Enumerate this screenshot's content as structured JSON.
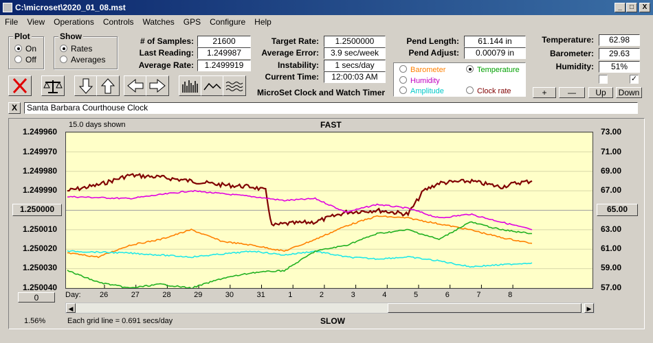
{
  "window": {
    "title": "C:\\microset\\2020_01_08.mst",
    "min": "_",
    "max": "□",
    "close": "X"
  },
  "menu": [
    "File",
    "View",
    "Operations",
    "Controls",
    "Watches",
    "GPS",
    "Configure",
    "Help"
  ],
  "plot_group": {
    "legend": "Plot",
    "options": [
      {
        "label": "On",
        "selected": true
      },
      {
        "label": "Off",
        "selected": false
      }
    ]
  },
  "show_group": {
    "legend": "Show",
    "options": [
      {
        "label": "Rates",
        "selected": true
      },
      {
        "label": "Averages",
        "selected": false
      }
    ]
  },
  "stats": {
    "samples_label": "# of Samples:",
    "samples": "21600",
    "last_label": "Last Reading:",
    "last": "1.249987",
    "avg_label": "Average Rate:",
    "avg": "1.2499919"
  },
  "targets": {
    "target_label": "Target Rate:",
    "target": "1.2500000",
    "error_label": "Average Error:",
    "error": "3.9 sec/week",
    "instab_label": "Instability:",
    "instab": "1 secs/day",
    "time_label": "Current Time:",
    "time": "12:00:03 AM",
    "app_name": "MicroSet Clock and Watch Timer"
  },
  "pend": {
    "length_label": "Pend Length:",
    "length": "61.144 in",
    "adjust_label": "Pend Adjust:",
    "adjust": "0.00079 in"
  },
  "env": {
    "temp_label": "Temperature:",
    "temp": "62.98",
    "baro_label": "Barometer:",
    "baro": "29.63",
    "hum_label": "Humidity:",
    "hum": "51%"
  },
  "series_select": [
    {
      "label": "Barometer",
      "color": "#ff8000",
      "selected": false
    },
    {
      "label": "Temperature",
      "color": "#00a000",
      "selected": true
    },
    {
      "label": "Humidity",
      "color": "#c000c0",
      "selected": false
    },
    {
      "label": "Clock rate",
      "color": "#800000",
      "selected": false
    },
    {
      "label": "Amplitude",
      "color": "#00c8c8",
      "selected": false
    }
  ],
  "adjust_buttons": {
    "plus": "+",
    "minus": "—",
    "up": "Up",
    "down": "Down"
  },
  "checkboxes": [
    false,
    true
  ],
  "clock_name": {
    "close": "X",
    "value": "Santa Barbara Courthouse Clock"
  },
  "graph": {
    "days_shown": "15.0 days shown",
    "top_label": "FAST",
    "bottom_label": "SLOW",
    "grid_note": "Each grid line = 0.691 secs/day",
    "zoom": "1.56%",
    "left_ticks": [
      "1.249960",
      "1.249970",
      "1.249980",
      "1.249990",
      "1.250000",
      "1.250010",
      "1.250020",
      "1.250030",
      "1.250040"
    ],
    "left_center_btn": "1.250000",
    "right_ticks": [
      "73.00",
      "71.00",
      "69.00",
      "67.00",
      "65.00",
      "63.00",
      "61.00",
      "59.00",
      "57.00"
    ],
    "right_center_btn": "65.00",
    "zero_btn": "0",
    "day_label": "Day:",
    "days": [
      "26",
      "27",
      "28",
      "29",
      "30",
      "31",
      "1",
      "2",
      "3",
      "4",
      "5",
      "6",
      "7",
      "8"
    ]
  },
  "chart_data": {
    "type": "line",
    "left_axis": {
      "range": [
        1.24996,
        1.25004
      ],
      "inverted": true
    },
    "right_axis": {
      "range": [
        57,
        73
      ]
    },
    "series": [
      {
        "name": "Clock rate",
        "color": "#800000",
        "points": [
          [
            0,
            1.24999
          ],
          [
            1,
            1.249987
          ],
          [
            2,
            1.249982
          ],
          [
            3,
            1.249983
          ],
          [
            4,
            1.249985
          ],
          [
            5,
            1.249987
          ],
          [
            6,
            1.249988
          ],
          [
            6.4,
            1.24999
          ],
          [
            6.6,
            1.250008
          ],
          [
            7,
            1.250007
          ],
          [
            8,
            1.250006
          ],
          [
            9,
            1.250001
          ],
          [
            10,
            1.25
          ],
          [
            11,
            1.250002
          ],
          [
            11.5,
            1.24999
          ],
          [
            12,
            1.249986
          ],
          [
            13,
            1.249985
          ],
          [
            14,
            1.249988
          ],
          [
            14.5,
            1.249986
          ],
          [
            15,
            1.249985
          ]
        ]
      },
      {
        "name": "Humidity",
        "color": "#e000e0",
        "points": [
          [
            0,
            1.249993
          ],
          [
            2,
            1.249994
          ],
          [
            4,
            1.24999
          ],
          [
            6,
            1.249993
          ],
          [
            7,
            1.249995
          ],
          [
            8,
            1.249994
          ],
          [
            9,
            1.250001
          ],
          [
            10,
            1.249997
          ],
          [
            11,
            1.249999
          ],
          [
            12,
            1.250004
          ],
          [
            13,
            1.250002
          ],
          [
            14,
            1.250006
          ],
          [
            15,
            1.25001
          ]
        ]
      },
      {
        "name": "Barometer",
        "color": "#ff8000",
        "points": [
          [
            0,
            1.250022
          ],
          [
            1,
            1.250024
          ],
          [
            2,
            1.250018
          ],
          [
            3,
            1.250015
          ],
          [
            4,
            1.25001
          ],
          [
            5,
            1.250016
          ],
          [
            6,
            1.250018
          ],
          [
            7,
            1.250021
          ],
          [
            8,
            1.250015
          ],
          [
            9,
            1.250008
          ],
          [
            10,
            1.250003
          ],
          [
            11,
            1.250004
          ],
          [
            12,
            1.250007
          ],
          [
            13,
            1.25001
          ],
          [
            14,
            1.250014
          ],
          [
            15,
            1.250017
          ]
        ]
      },
      {
        "name": "Amplitude",
        "color": "#20e8e8",
        "points": [
          [
            0,
            1.250021
          ],
          [
            2,
            1.250022
          ],
          [
            4,
            1.250024
          ],
          [
            6,
            1.250021
          ],
          [
            7,
            1.250023
          ],
          [
            8,
            1.250021
          ],
          [
            9,
            1.250024
          ],
          [
            10,
            1.250025
          ],
          [
            11,
            1.250024
          ],
          [
            12,
            1.250026
          ],
          [
            13,
            1.250029
          ],
          [
            14,
            1.250028
          ],
          [
            15,
            1.250027
          ]
        ]
      },
      {
        "name": "Temperature",
        "color": "#20b020",
        "points": [
          [
            0,
            1.250031
          ],
          [
            1,
            1.250037
          ],
          [
            2,
            1.25004
          ],
          [
            3,
            1.250038
          ],
          [
            4,
            1.25004
          ],
          [
            5,
            1.250035
          ],
          [
            6,
            1.250032
          ],
          [
            7,
            1.250031
          ],
          [
            8,
            1.250021
          ],
          [
            9,
            1.250018
          ],
          [
            10,
            1.250012
          ],
          [
            11,
            1.25001
          ],
          [
            12,
            1.250015
          ],
          [
            13,
            1.250006
          ],
          [
            14,
            1.25001
          ],
          [
            15,
            1.250012
          ]
        ]
      }
    ]
  }
}
